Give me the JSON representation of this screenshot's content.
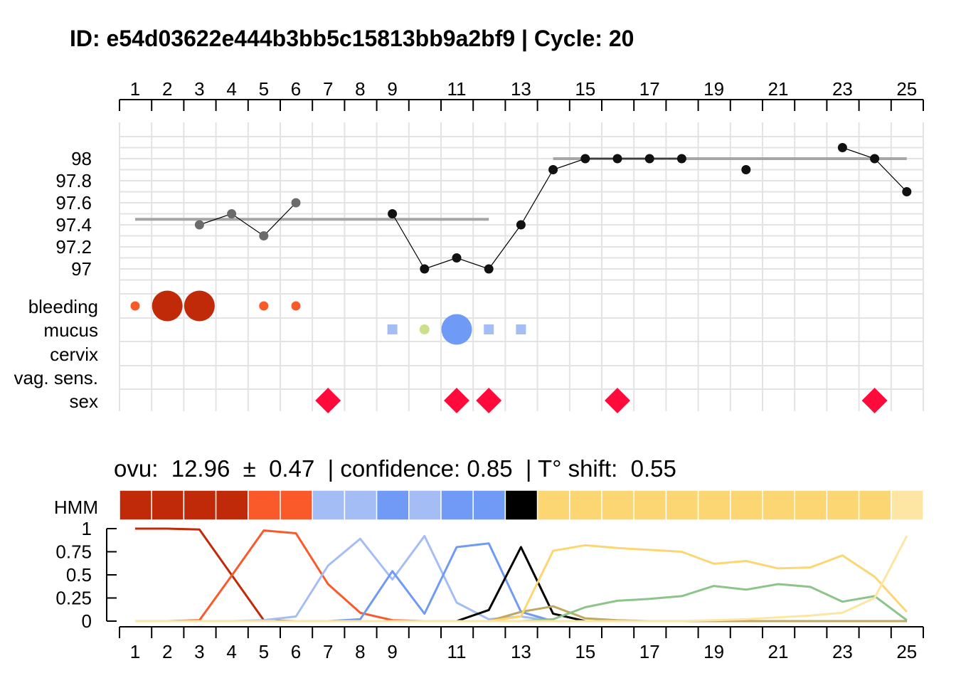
{
  "title": "ID: e54d03622e444b3bb5c15813bb9a2bf9 | Cycle: 20",
  "summary": "ovu:  12.96  ±  0.47  | confidence: 0.85  | T° shift:  0.55",
  "colors": {
    "grid": "#e3e3e3",
    "temp_line_gray": "#a6a6a6",
    "bleed_light": "#fa5a2a",
    "bleed_heavy": "#c02a08",
    "mucus_light": "#a5bdf5",
    "mucus_green": "#cbe08a",
    "mucus_heavy": "#6f9af5",
    "sex": "#ff0a3a",
    "ovulation": "#000000",
    "luteal": "#fcd673",
    "luteal_end": "#fde5a3",
    "green_curve": "#8cc48a",
    "olive_curve": "#c0a860"
  },
  "chart_data": [
    {
      "type": "scatter",
      "x_ticks_top": [
        1,
        2,
        3,
        4,
        5,
        6,
        7,
        8,
        9,
        11,
        13,
        15,
        17,
        19,
        21,
        23,
        25
      ],
      "xlim": [
        1,
        25
      ],
      "ylim": [
        96.85,
        98.2
      ],
      "y_ticks": [
        {
          "v": 97,
          "label": "97"
        },
        {
          "v": 97.2,
          "label": "97.2"
        },
        {
          "v": 97.4,
          "label": "97.4"
        },
        {
          "v": 97.6,
          "label": "97.6"
        },
        {
          "v": 97.8,
          "label": "97.8"
        },
        {
          "v": 98,
          "label": "98"
        }
      ],
      "grid": true,
      "temperature_points": [
        {
          "day": 3,
          "temp": 97.4,
          "tone": "gray"
        },
        {
          "day": 4,
          "temp": 97.5,
          "tone": "gray"
        },
        {
          "day": 5,
          "temp": 97.3,
          "tone": "gray"
        },
        {
          "day": 6,
          "temp": 97.6,
          "tone": "gray"
        },
        {
          "day": 9,
          "temp": 97.5,
          "tone": "black"
        },
        {
          "day": 10,
          "temp": 97.0,
          "tone": "black"
        },
        {
          "day": 11,
          "temp": 97.1,
          "tone": "black"
        },
        {
          "day": 12,
          "temp": 97.0,
          "tone": "black"
        },
        {
          "day": 13,
          "temp": 97.4,
          "tone": "black"
        },
        {
          "day": 14,
          "temp": 97.9,
          "tone": "black"
        },
        {
          "day": 15,
          "temp": 98.0,
          "tone": "black"
        },
        {
          "day": 16,
          "temp": 98.0,
          "tone": "black"
        },
        {
          "day": 17,
          "temp": 98.0,
          "tone": "black"
        },
        {
          "day": 18,
          "temp": 98.0,
          "tone": "black"
        },
        {
          "day": 20,
          "temp": 97.9,
          "tone": "black"
        },
        {
          "day": 23,
          "temp": 98.1,
          "tone": "black"
        },
        {
          "day": 24,
          "temp": 98.0,
          "tone": "black"
        },
        {
          "day": 25,
          "temp": 97.7,
          "tone": "black"
        }
      ],
      "temperature_segments": [
        [
          3,
          4,
          5,
          6
        ],
        [
          9,
          10,
          11,
          12,
          13,
          14,
          15,
          16,
          17,
          18
        ],
        [
          23,
          24,
          25
        ]
      ],
      "baselines": [
        {
          "from": 1,
          "to": 12,
          "temp": 97.45
        },
        {
          "from": 14,
          "to": 25,
          "temp": 98.0
        }
      ],
      "row_labels": [
        "bleeding",
        "mucus",
        "cervix",
        "vag. sens.",
        "sex"
      ],
      "bleeding": [
        {
          "day": 1,
          "level": "light"
        },
        {
          "day": 2,
          "level": "heavy"
        },
        {
          "day": 3,
          "level": "heavy"
        },
        {
          "day": 5,
          "level": "light"
        },
        {
          "day": 6,
          "level": "light"
        }
      ],
      "mucus": [
        {
          "day": 9,
          "kind": "square"
        },
        {
          "day": 10,
          "kind": "green-dot"
        },
        {
          "day": 11,
          "kind": "big-circle"
        },
        {
          "day": 12,
          "kind": "square"
        },
        {
          "day": 13,
          "kind": "square"
        }
      ],
      "sex": [
        7,
        11,
        12,
        16,
        24
      ]
    },
    {
      "type": "line",
      "hmm_label": "HMM",
      "hmm_states": [
        "M",
        "M",
        "M",
        "M",
        "L",
        "L",
        "lm",
        "lm",
        "hm",
        "lm",
        "hm",
        "hm",
        "O",
        "P",
        "P",
        "P",
        "P",
        "P",
        "P",
        "P",
        "P",
        "P",
        "P",
        "P",
        "E"
      ],
      "x": [
        1,
        2,
        3,
        4,
        5,
        6,
        7,
        8,
        9,
        10,
        11,
        12,
        13,
        14,
        15,
        16,
        17,
        18,
        19,
        20,
        21,
        22,
        23,
        24,
        25
      ],
      "x_ticks_bottom": [
        1,
        2,
        3,
        4,
        5,
        6,
        7,
        8,
        9,
        11,
        13,
        15,
        17,
        19,
        21,
        23,
        25
      ],
      "ylim": [
        0,
        1
      ],
      "y_ticks": [
        {
          "v": 0,
          "label": "0"
        },
        {
          "v": 0.25,
          "label": "0.25"
        },
        {
          "v": 0.5,
          "label": "0.5"
        },
        {
          "v": 0.75,
          "label": "0.75"
        },
        {
          "v": 1,
          "label": "1"
        }
      ],
      "series": [
        {
          "color": "#c02a08",
          "values": [
            1,
            1,
            0.99,
            0.5,
            0.01,
            0,
            0,
            0,
            0,
            0,
            0,
            0,
            0,
            0,
            0,
            0,
            0,
            0,
            0,
            0,
            0,
            0,
            0,
            0,
            0
          ]
        },
        {
          "color": "#fa5a2a",
          "values": [
            0,
            0,
            0.01,
            0.49,
            0.98,
            0.95,
            0.4,
            0.09,
            0.01,
            0,
            0,
            0,
            0,
            0,
            0,
            0,
            0,
            0,
            0,
            0,
            0,
            0,
            0,
            0,
            0
          ]
        },
        {
          "color": "#a5bdf5",
          "values": [
            0,
            0,
            0,
            0,
            0.01,
            0.05,
            0.6,
            0.89,
            0.45,
            0.92,
            0.2,
            0.02,
            0.05,
            0,
            0,
            0,
            0,
            0,
            0,
            0,
            0,
            0,
            0,
            0,
            0
          ]
        },
        {
          "color": "#6f9af5",
          "values": [
            0,
            0,
            0,
            0,
            0,
            0,
            0,
            0.02,
            0.54,
            0.08,
            0.8,
            0.84,
            0.1,
            0,
            0,
            0,
            0,
            0,
            0,
            0,
            0,
            0,
            0,
            0,
            0
          ]
        },
        {
          "color": "#000000",
          "values": [
            0,
            0,
            0,
            0,
            0,
            0,
            0,
            0,
            0,
            0,
            0,
            0.12,
            0.8,
            0.08,
            0,
            0,
            0,
            0,
            0,
            0,
            0,
            0,
            0,
            0,
            0
          ]
        },
        {
          "color": "#c0a860",
          "values": [
            0,
            0,
            0,
            0,
            0,
            0,
            0,
            0,
            0,
            0,
            0,
            0,
            0.1,
            0.16,
            0.03,
            0.01,
            0,
            0,
            0,
            0,
            0,
            0,
            0,
            0,
            0
          ]
        },
        {
          "color": "#8cc48a",
          "values": [
            0,
            0,
            0,
            0,
            0,
            0,
            0,
            0,
            0,
            0,
            0,
            0,
            0,
            0.02,
            0.15,
            0.22,
            0.24,
            0.27,
            0.38,
            0.34,
            0.4,
            0.37,
            0.21,
            0.27,
            0.01
          ]
        },
        {
          "color": "#fcd673",
          "values": [
            0,
            0,
            0,
            0,
            0,
            0,
            0,
            0,
            0,
            0,
            0,
            0,
            0.05,
            0.76,
            0.82,
            0.79,
            0.77,
            0.75,
            0.62,
            0.65,
            0.57,
            0.58,
            0.71,
            0.48,
            0.1
          ]
        },
        {
          "color": "#fde5a3",
          "values": [
            0,
            0,
            0,
            0,
            0,
            0,
            0,
            0,
            0,
            0,
            0,
            0,
            0,
            0,
            0,
            0,
            0,
            0,
            0.01,
            0.02,
            0.04,
            0.06,
            0.09,
            0.25,
            0.92
          ]
        }
      ]
    }
  ]
}
